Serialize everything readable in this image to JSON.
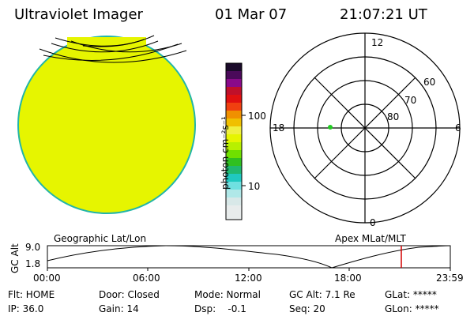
{
  "header": {
    "title": "Ultraviolet Imager",
    "date": "01 Mar 07",
    "time": "21:07:21 UT"
  },
  "colorbar": {
    "unit_label": "photon cm⁻²s⁻¹",
    "ticks": [
      "100",
      "10"
    ]
  },
  "polar_plot": {
    "mlt_labels": [
      "12",
      "18",
      "6",
      "0"
    ],
    "lat_labels": [
      "60",
      "70",
      "80"
    ]
  },
  "altitude_panel": {
    "ylabel": "GC Alt",
    "y_ticks": [
      "9.0",
      "1.8"
    ],
    "left_title": "Geographic Lat/Lon",
    "right_title": "Apex MLat/MLT",
    "x_ticks": [
      "00:00",
      "06:00",
      "12:00",
      "18:00",
      "23:59"
    ]
  },
  "status": {
    "flt": "Flt: HOME",
    "ip": "IP: 36.0",
    "door": "Door: Closed",
    "gain": "Gain: 14",
    "mode": "Mode: Normal",
    "dsp": "Dsp:    -0.1",
    "gc_alt": "GC Alt: 7.1 Re",
    "seq": "Seq: 20",
    "glat": "GLat: *****",
    "glon": "GLon: *****"
  },
  "colors": {
    "disk_fill": "#e6f500",
    "disk_edge": "#22b5a8",
    "marker": "#22cc22",
    "time_cursor": "#d40000"
  }
}
